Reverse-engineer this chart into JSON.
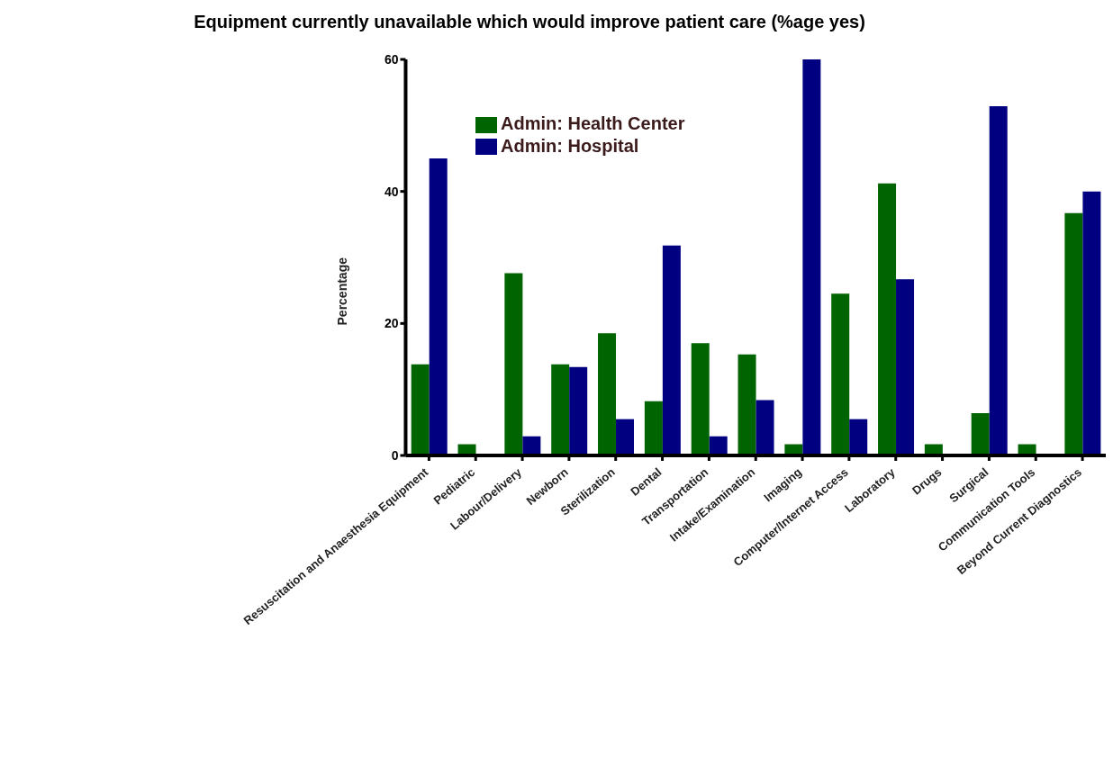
{
  "chart_data": {
    "type": "bar",
    "title": "Equipment currently unavailable which would improve patient care (%age yes)",
    "ylabel": "Percentage",
    "categories": [
      "Resuscitation and Anaesthesia Equipment",
      "Pediatric",
      "Labour/Delivery",
      "Newborn",
      "Sterilization",
      "Dental",
      "Transportation",
      "Intake/Examination",
      "Imaging",
      "Computer/Internet Access",
      "Laboratory",
      "Drugs",
      "Surgical",
      "Communication Tools",
      "Beyond Current Diagnostics"
    ],
    "series": [
      {
        "name": "Admin: Health Center",
        "color": "#006400",
        "values": [
          13.8,
          1.7,
          27.6,
          13.8,
          18.5,
          8.2,
          17.0,
          15.3,
          1.7,
          24.5,
          41.2,
          1.7,
          6.4,
          1.7,
          36.7
        ]
      },
      {
        "name": "Admin: Hospital",
        "color": "#000080",
        "values": [
          45.0,
          0,
          2.9,
          13.4,
          5.5,
          31.8,
          2.9,
          8.4,
          60,
          5.5,
          26.7,
          0,
          52.9,
          0,
          40.0
        ]
      }
    ],
    "ylim": [
      0,
      60
    ],
    "yticks": [
      0,
      20,
      40,
      60
    ],
    "grid": false,
    "legend": "top"
  }
}
